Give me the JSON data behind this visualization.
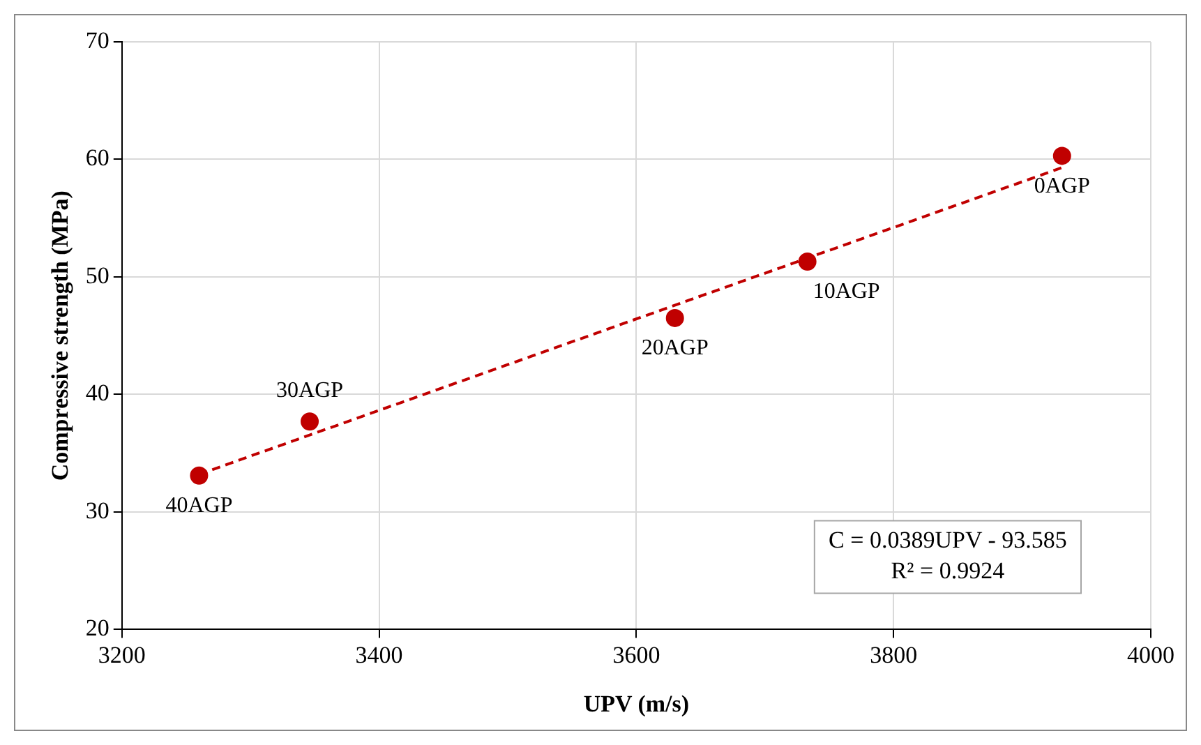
{
  "chart_data": {
    "type": "scatter",
    "xlabel": "UPV (m/s)",
    "ylabel": "Compressive strength (MPa)",
    "xlim": [
      3200,
      4000
    ],
    "xticks": [
      3200,
      3400,
      3600,
      3800,
      4000
    ],
    "ylim": [
      20,
      70
    ],
    "yticks": [
      20,
      30,
      40,
      50,
      60,
      70
    ],
    "grid": true,
    "marker": "circle",
    "series": [
      {
        "type": "scatter",
        "color": "#c00000",
        "x": [
          3260,
          3346,
          3630,
          3733,
          3931
        ],
        "values": [
          33.1,
          37.7,
          46.5,
          51.3,
          60.3
        ]
      },
      {
        "type": "line",
        "color": "#c00000",
        "line_style": "dashed",
        "marker": "none",
        "x": [
          3260,
          3931
        ],
        "values": [
          33.2,
          59.3
        ]
      }
    ],
    "annotations": [
      {
        "text": "40AGP",
        "x": 3260,
        "y": 33.1
      },
      {
        "text": "30AGP",
        "x": 3346,
        "y": 37.7
      },
      {
        "text": "20AGP",
        "x": 3630,
        "y": 46.5
      },
      {
        "text": "10AGP",
        "x": 3733,
        "y": 51.3
      },
      {
        "text": "0AGP",
        "x": 3931,
        "y": 60.3
      },
      "C = 0.0389UPV - 93.585",
      "R² = 0.9924"
    ]
  }
}
